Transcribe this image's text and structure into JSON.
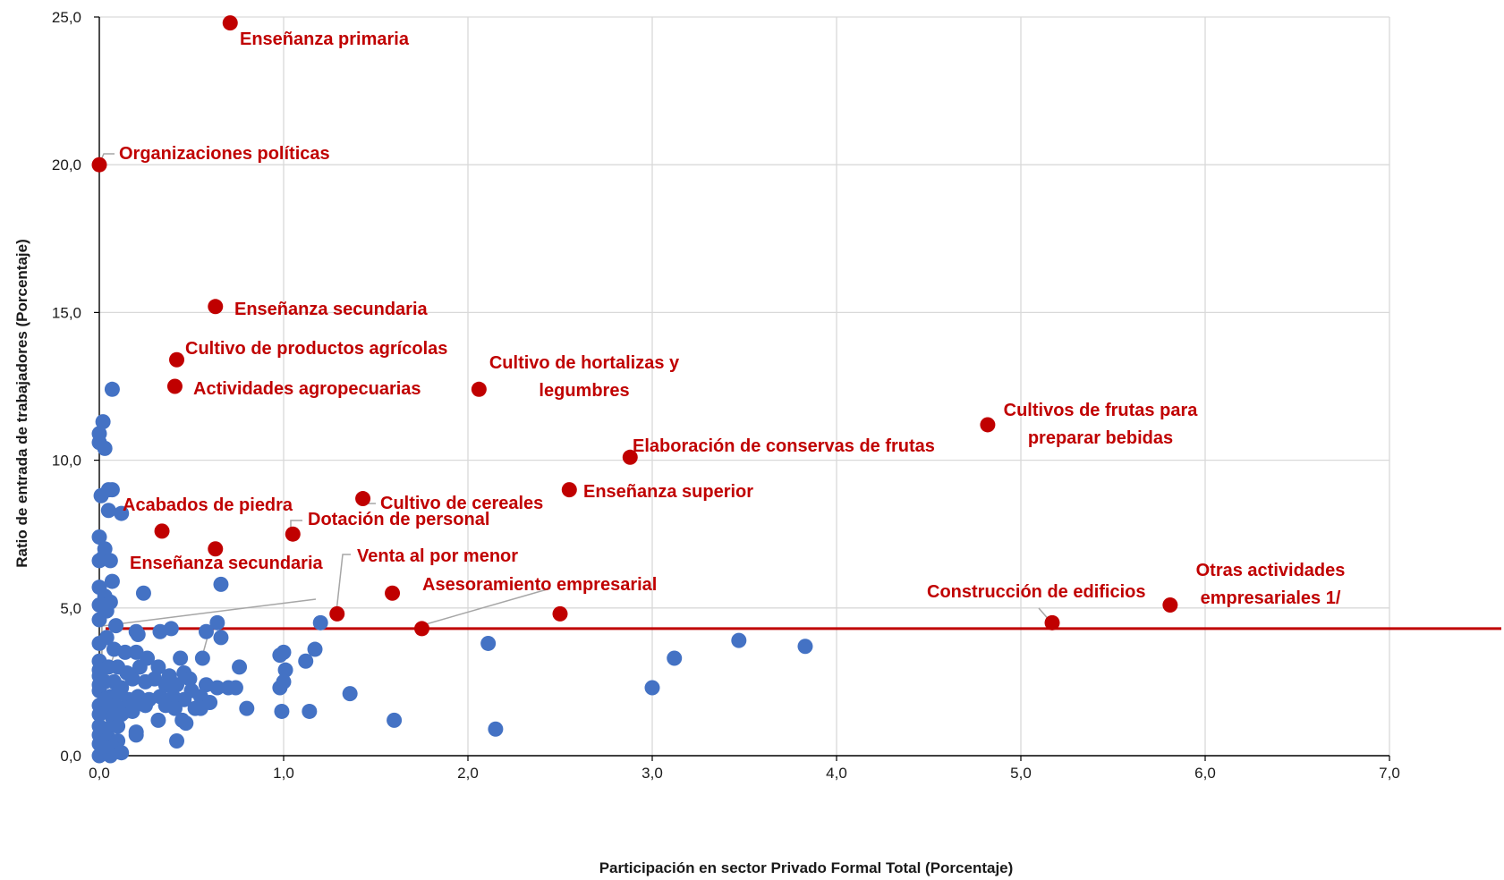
{
  "chart_data": {
    "type": "scatter",
    "xlabel": "Participación en sector Privado Formal Total (Porcentaje)",
    "ylabel": "Ratio de entrada de trabajadores (Porcentaje)",
    "xlim": [
      0,
      7
    ],
    "ylim": [
      0,
      25
    ],
    "x_ticks": [
      "0,0",
      "1,0",
      "2,0",
      "3,0",
      "4,0",
      "5,0",
      "6,0",
      "7,0"
    ],
    "y_ticks": [
      "0,0",
      "5,0",
      "10,0",
      "15,0",
      "20,0",
      "25,0"
    ],
    "grid": "vertical and horizontal",
    "reference_line": {
      "y": 4.3,
      "color": "#C00000"
    },
    "colors": {
      "highlight": "#C00000",
      "other": "#4472C4",
      "grid": "#d9d9d9",
      "leader": "#a6a6a6"
    },
    "highlighted_points": [
      {
        "label": "Enseñanza primaria",
        "x": 0.71,
        "y": 24.8
      },
      {
        "label": "Organizaciones políticas",
        "x": 0.0,
        "y": 20.0
      },
      {
        "label": "Enseñanza secundaria",
        "x": 0.63,
        "y": 15.2
      },
      {
        "label": "Cultivo de productos agrícolas",
        "x": 0.42,
        "y": 13.4
      },
      {
        "label": "Actividades agropecuarias",
        "x": 0.41,
        "y": 12.5
      },
      {
        "label": "Cultivo de hortalizas y legumbres",
        "x": 2.06,
        "y": 12.4
      },
      {
        "label": "Cultivos de frutas para preparar bebidas",
        "x": 4.82,
        "y": 11.2
      },
      {
        "label": "Elaboración de conservas de frutas",
        "x": 2.88,
        "y": 10.1
      },
      {
        "label": "Enseñanza superior",
        "x": 2.55,
        "y": 9.0
      },
      {
        "label": "Cultivo de cereales",
        "x": 1.43,
        "y": 8.7
      },
      {
        "label": "Dotación de personal",
        "x": 1.05,
        "y": 7.5
      },
      {
        "label": "Acabados de piedra",
        "x": 0.34,
        "y": 7.6
      },
      {
        "label": "Enseñanza secundaria",
        "x": 0.63,
        "y": 7.0
      },
      {
        "label": "Venta al por menor",
        "x": 1.29,
        "y": 4.8
      },
      {
        "label": "Asesoramiento empresarial",
        "x": 1.75,
        "y": 4.3
      },
      {
        "label": "",
        "x": 1.59,
        "y": 5.5
      },
      {
        "label": "",
        "x": 2.5,
        "y": 4.8
      },
      {
        "label": "Construcción de edificios",
        "x": 5.17,
        "y": 4.5
      },
      {
        "label": "Otras actividades empresariales 1/",
        "x": 5.81,
        "y": 5.1
      }
    ],
    "other_points": [
      [
        0.07,
        12.4
      ],
      [
        0.02,
        11.3
      ],
      [
        0.0,
        10.9
      ],
      [
        0.0,
        10.6
      ],
      [
        0.03,
        10.4
      ],
      [
        0.01,
        8.8
      ],
      [
        0.05,
        9.0
      ],
      [
        0.07,
        9.0
      ],
      [
        0.05,
        8.3
      ],
      [
        0.12,
        8.2
      ],
      [
        0.0,
        7.4
      ],
      [
        0.03,
        7.0
      ],
      [
        0.0,
        6.6
      ],
      [
        0.02,
        6.7
      ],
      [
        0.06,
        6.6
      ],
      [
        0.07,
        5.9
      ],
      [
        0.0,
        5.7
      ],
      [
        0.03,
        5.4
      ],
      [
        0.06,
        5.2
      ],
      [
        0.24,
        5.5
      ],
      [
        0.0,
        5.1
      ],
      [
        0.04,
        4.9
      ],
      [
        0.0,
        4.6
      ],
      [
        0.09,
        4.4
      ],
      [
        0.66,
        5.8
      ],
      [
        0.64,
        4.5
      ],
      [
        0.58,
        4.2
      ],
      [
        0.2,
        4.2
      ],
      [
        0.33,
        4.2
      ],
      [
        0.39,
        4.3
      ],
      [
        0.66,
        4.0
      ],
      [
        0.21,
        4.1
      ],
      [
        1.2,
        4.5
      ],
      [
        0.0,
        3.8
      ],
      [
        0.04,
        4.0
      ],
      [
        0.08,
        3.6
      ],
      [
        0.14,
        3.5
      ],
      [
        0.2,
        3.5
      ],
      [
        0.26,
        3.3
      ],
      [
        0.44,
        3.3
      ],
      [
        0.56,
        3.3
      ],
      [
        0.98,
        3.4
      ],
      [
        1.0,
        3.5
      ],
      [
        1.17,
        3.6
      ],
      [
        1.12,
        3.2
      ],
      [
        2.11,
        3.8
      ],
      [
        3.47,
        3.9
      ],
      [
        3.83,
        3.7
      ],
      [
        3.12,
        3.3
      ],
      [
        0.0,
        3.2
      ],
      [
        0.05,
        3.0
      ],
      [
        0.1,
        3.0
      ],
      [
        0.15,
        2.8
      ],
      [
        0.22,
        3.0
      ],
      [
        0.32,
        3.0
      ],
      [
        0.38,
        2.7
      ],
      [
        0.46,
        2.8
      ],
      [
        0.49,
        2.6
      ],
      [
        0.76,
        3.0
      ],
      [
        1.01,
        2.9
      ],
      [
        0.0,
        2.7
      ],
      [
        0.03,
        2.5
      ],
      [
        0.08,
        2.5
      ],
      [
        0.12,
        2.3
      ],
      [
        0.18,
        2.6
      ],
      [
        0.25,
        2.5
      ],
      [
        0.3,
        2.6
      ],
      [
        0.36,
        2.4
      ],
      [
        0.42,
        2.4
      ],
      [
        0.5,
        2.2
      ],
      [
        0.58,
        2.4
      ],
      [
        0.64,
        2.3
      ],
      [
        0.7,
        2.3
      ],
      [
        0.74,
        2.3
      ],
      [
        0.98,
        2.3
      ],
      [
        1.0,
        2.5
      ],
      [
        0.0,
        2.2
      ],
      [
        0.06,
        2.0
      ],
      [
        0.1,
        2.1
      ],
      [
        0.16,
        1.9
      ],
      [
        0.21,
        2.0
      ],
      [
        0.27,
        1.9
      ],
      [
        0.33,
        2.0
      ],
      [
        0.4,
        2.0
      ],
      [
        0.46,
        1.9
      ],
      [
        0.55,
        2.0
      ],
      [
        0.6,
        1.8
      ],
      [
        1.36,
        2.1
      ],
      [
        3.0,
        2.3
      ],
      [
        0.0,
        1.7
      ],
      [
        0.05,
        1.6
      ],
      [
        0.09,
        1.7
      ],
      [
        0.14,
        1.6
      ],
      [
        0.19,
        1.8
      ],
      [
        0.25,
        1.7
      ],
      [
        0.36,
        1.7
      ],
      [
        0.41,
        1.6
      ],
      [
        0.52,
        1.6
      ],
      [
        0.55,
        1.6
      ],
      [
        0.8,
        1.6
      ],
      [
        0.0,
        1.4
      ],
      [
        0.07,
        1.3
      ],
      [
        0.12,
        1.4
      ],
      [
        0.18,
        1.5
      ],
      [
        0.32,
        1.2
      ],
      [
        0.45,
        1.2
      ],
      [
        0.47,
        1.1
      ],
      [
        0.99,
        1.5
      ],
      [
        1.14,
        1.5
      ],
      [
        1.6,
        1.2
      ],
      [
        0.0,
        1.0
      ],
      [
        0.04,
        0.9
      ],
      [
        0.1,
        1.0
      ],
      [
        0.2,
        0.7
      ],
      [
        0.2,
        0.8
      ],
      [
        2.15,
        0.9
      ],
      [
        0.0,
        0.7
      ],
      [
        0.05,
        0.6
      ],
      [
        0.1,
        0.5
      ],
      [
        0.42,
        0.5
      ],
      [
        0.0,
        0.4
      ],
      [
        0.03,
        0.2
      ],
      [
        0.07,
        0.3
      ],
      [
        0.0,
        0.0
      ],
      [
        0.06,
        0.0
      ],
      [
        0.12,
        0.1
      ],
      [
        0.02,
        0.3
      ],
      [
        0.0,
        2.9
      ],
      [
        0.0,
        2.4
      ],
      [
        0.03,
        1.9
      ]
    ]
  }
}
